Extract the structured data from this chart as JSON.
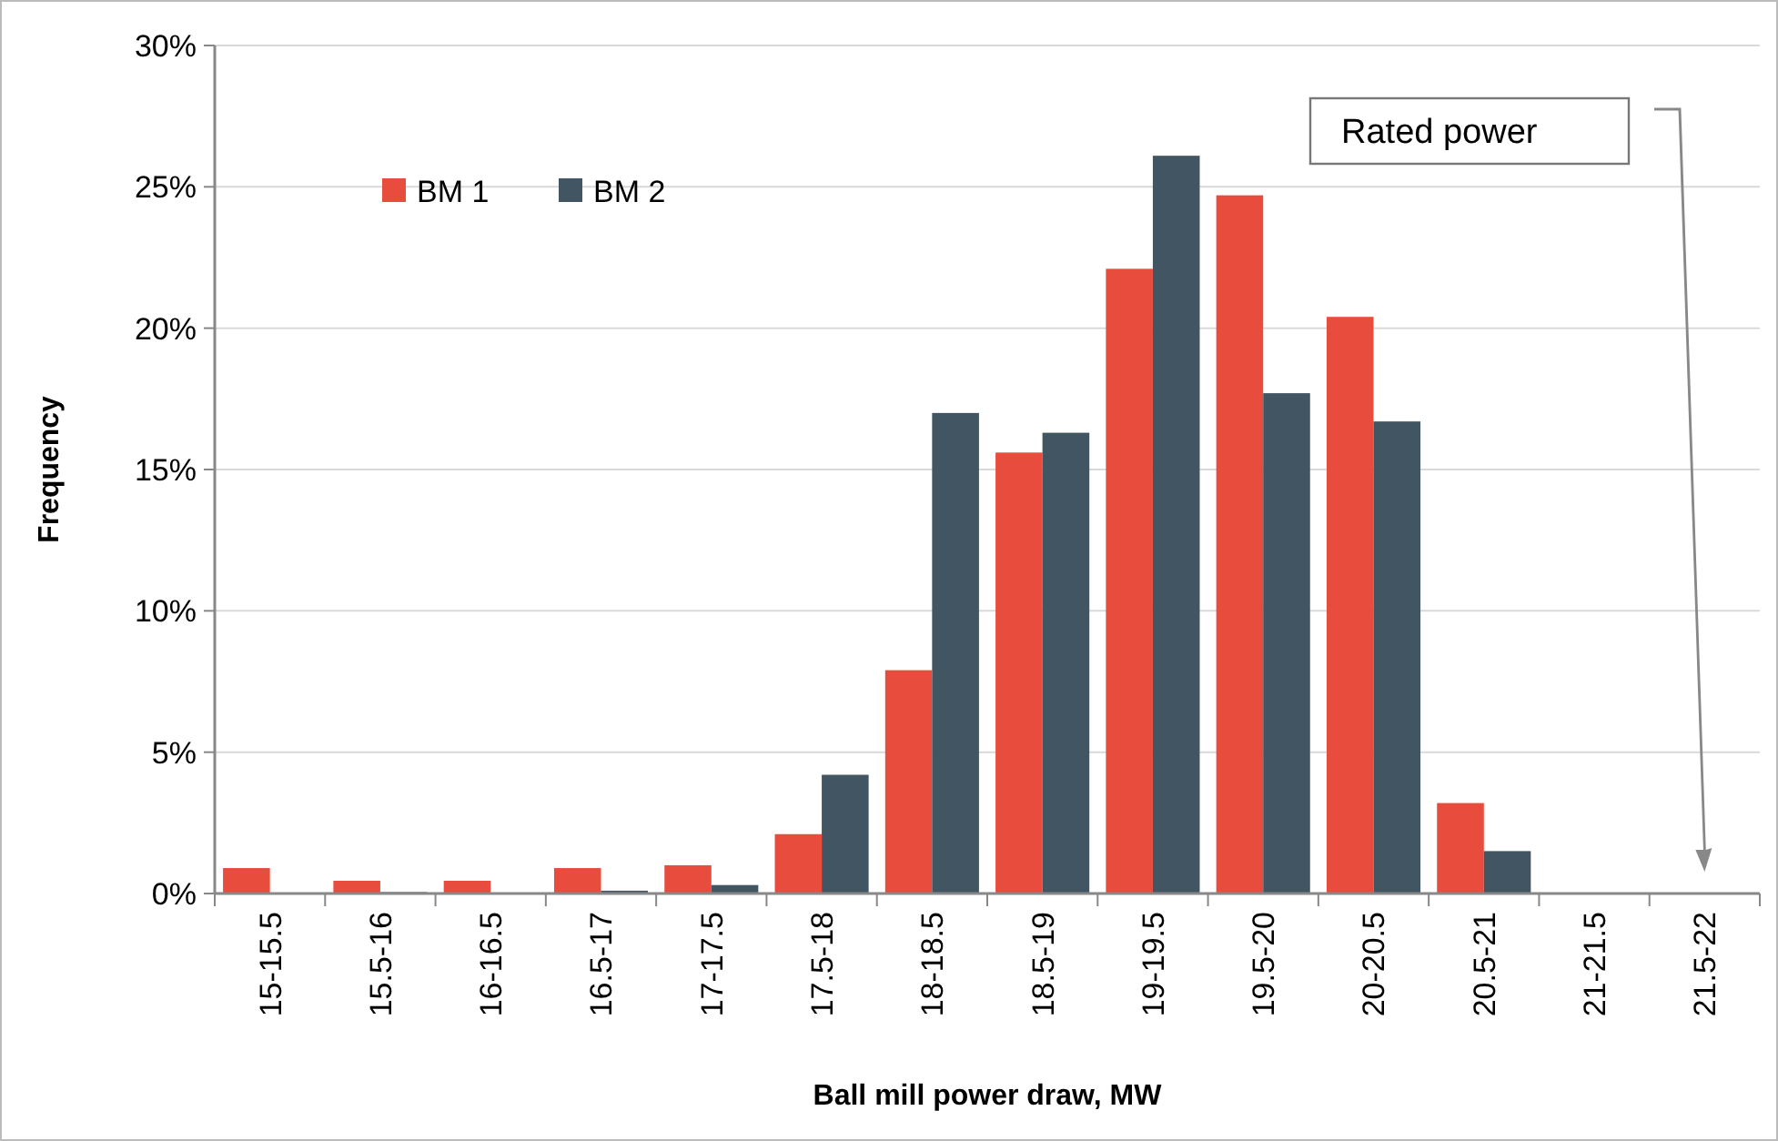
{
  "chart_data": {
    "type": "bar",
    "xlabel": "Ball mill power draw, MW",
    "ylabel": "Frequency",
    "categories": [
      "15-15.5",
      "15.5-16",
      "16-16.5",
      "16.5-17",
      "17-17.5",
      "17.5-18",
      "18-18.5",
      "18.5-19",
      "19-19.5",
      "19.5-20",
      "20-20.5",
      "20.5-21",
      "21-21.5",
      "21.5-22"
    ],
    "series": [
      {
        "name": "BM 1",
        "color": "#e84c3d",
        "values": [
          0.9,
          0.45,
          0.45,
          0.9,
          1.0,
          2.1,
          7.9,
          15.6,
          22.1,
          24.7,
          20.4,
          3.2,
          0,
          0
        ]
      },
      {
        "name": "BM 2",
        "color": "#425563",
        "values": [
          0,
          0.05,
          0,
          0.1,
          0.3,
          4.2,
          17.0,
          16.3,
          26.1,
          17.7,
          16.7,
          1.5,
          0,
          0
        ]
      }
    ],
    "ylim": [
      0,
      30
    ],
    "yticks": [
      {
        "value": 0,
        "label": "0%"
      },
      {
        "value": 5,
        "label": "5%"
      },
      {
        "value": 10,
        "label": "10%"
      },
      {
        "value": 15,
        "label": "15%"
      },
      {
        "value": 20,
        "label": "20%"
      },
      {
        "value": 25,
        "label": "25%"
      },
      {
        "value": 30,
        "label": "30%"
      }
    ],
    "grid": "y",
    "legend": "top left",
    "annotations": [
      "Rated power"
    ]
  }
}
